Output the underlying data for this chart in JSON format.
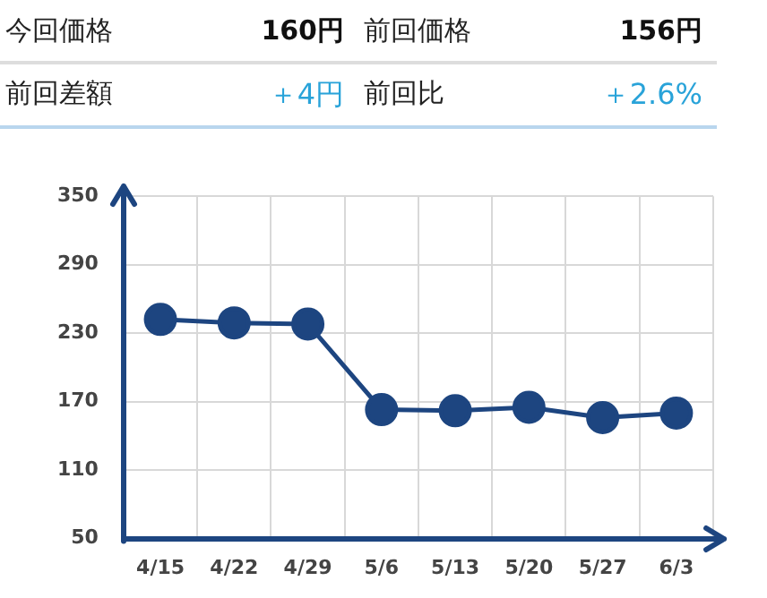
{
  "chart_data": {
    "type": "line",
    "annotations": [
      "今回価格",
      "160円",
      "前回価格",
      "156円",
      "前回差額",
      "＋4円",
      "前回比",
      "＋2.6%"
    ],
    "categories": [
      "4/15",
      "4/22",
      "4/29",
      "5/6",
      "5/13",
      "5/20",
      "5/27",
      "6/3"
    ],
    "series": [
      {
        "color": "#1d4580",
        "values": [
          242,
          239,
          238,
          163,
          162,
          165,
          156,
          160
        ]
      }
    ],
    "ylim": [
      50,
      350
    ],
    "yticks": [
      50,
      110,
      170,
      230,
      290,
      350
    ],
    "grid": true,
    "legend": false,
    "marker": "circle",
    "line_style": "solid"
  }
}
